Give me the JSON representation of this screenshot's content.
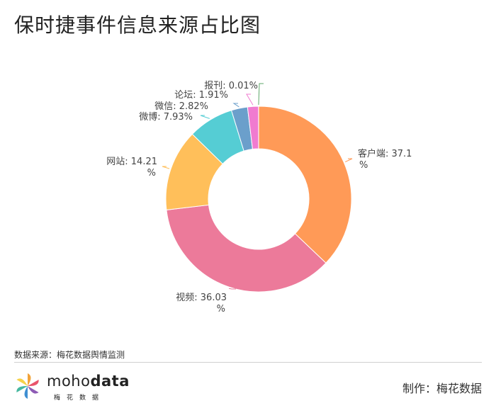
{
  "title": "保时捷事件信息来源占比图",
  "source_note": "数据来源：梅花数据舆情监测",
  "credit": "制作：梅花数据",
  "logo": {
    "brand_light": "moho",
    "brand_bold": "data",
    "subtitle": "梅花数据",
    "icon": "pinwheel-flower-icon"
  },
  "chart_data": {
    "type": "pie",
    "donut": true,
    "title": "保时捷事件信息来源占比图",
    "unit": "%",
    "slices": [
      {
        "label": "客户端",
        "value": 37.1,
        "text_lines": [
          "客户端: 37.1",
          "%"
        ],
        "color": "#ff9a57"
      },
      {
        "label": "视频",
        "value": 36.03,
        "text_lines": [
          "视频: 36.03",
          "%"
        ],
        "color": "#ec7a9a"
      },
      {
        "label": "网站",
        "value": 14.21,
        "text_lines": [
          "网站: 14.21",
          "%"
        ],
        "color": "#ffbf5a"
      },
      {
        "label": "微博",
        "value": 7.93,
        "text_lines": [
          "微博: 7.93%"
        ],
        "color": "#55cdd4"
      },
      {
        "label": "微信",
        "value": 2.82,
        "text_lines": [
          "微信: 2.82%"
        ],
        "color": "#6b9fcb"
      },
      {
        "label": "论坛",
        "value": 1.91,
        "text_lines": [
          "论坛: 1.91%"
        ],
        "color": "#f07bd0"
      },
      {
        "label": "报刊",
        "value": 0.01,
        "text_lines": [
          "报刊: 0.01%"
        ],
        "color": "#5fa86b"
      }
    ]
  }
}
